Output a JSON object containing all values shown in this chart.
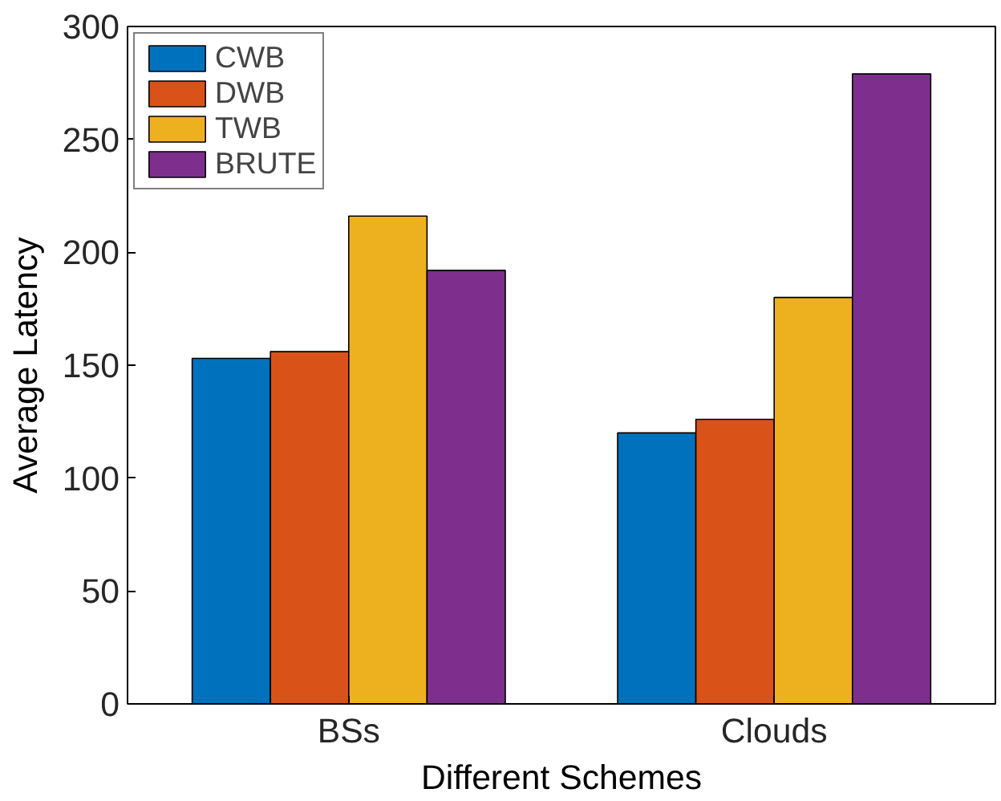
{
  "chart_data": {
    "type": "bar",
    "xlabel": "Different Schemes",
    "ylabel": "Average Latency",
    "categories": [
      "BSs",
      "Clouds"
    ],
    "series": [
      {
        "name": "CWB",
        "color": "#0072bd",
        "values": [
          153,
          120
        ]
      },
      {
        "name": "DWB",
        "color": "#d95319",
        "values": [
          156,
          126
        ]
      },
      {
        "name": "TWB",
        "color": "#edb120",
        "values": [
          216,
          180
        ]
      },
      {
        "name": "BRUTE",
        "color": "#7e2f8e",
        "values": [
          192,
          279
        ]
      }
    ],
    "ylim": [
      0,
      300
    ],
    "yticks": [
      0,
      50,
      100,
      150,
      200,
      250,
      300
    ],
    "grid": false,
    "legend": "top left"
  }
}
